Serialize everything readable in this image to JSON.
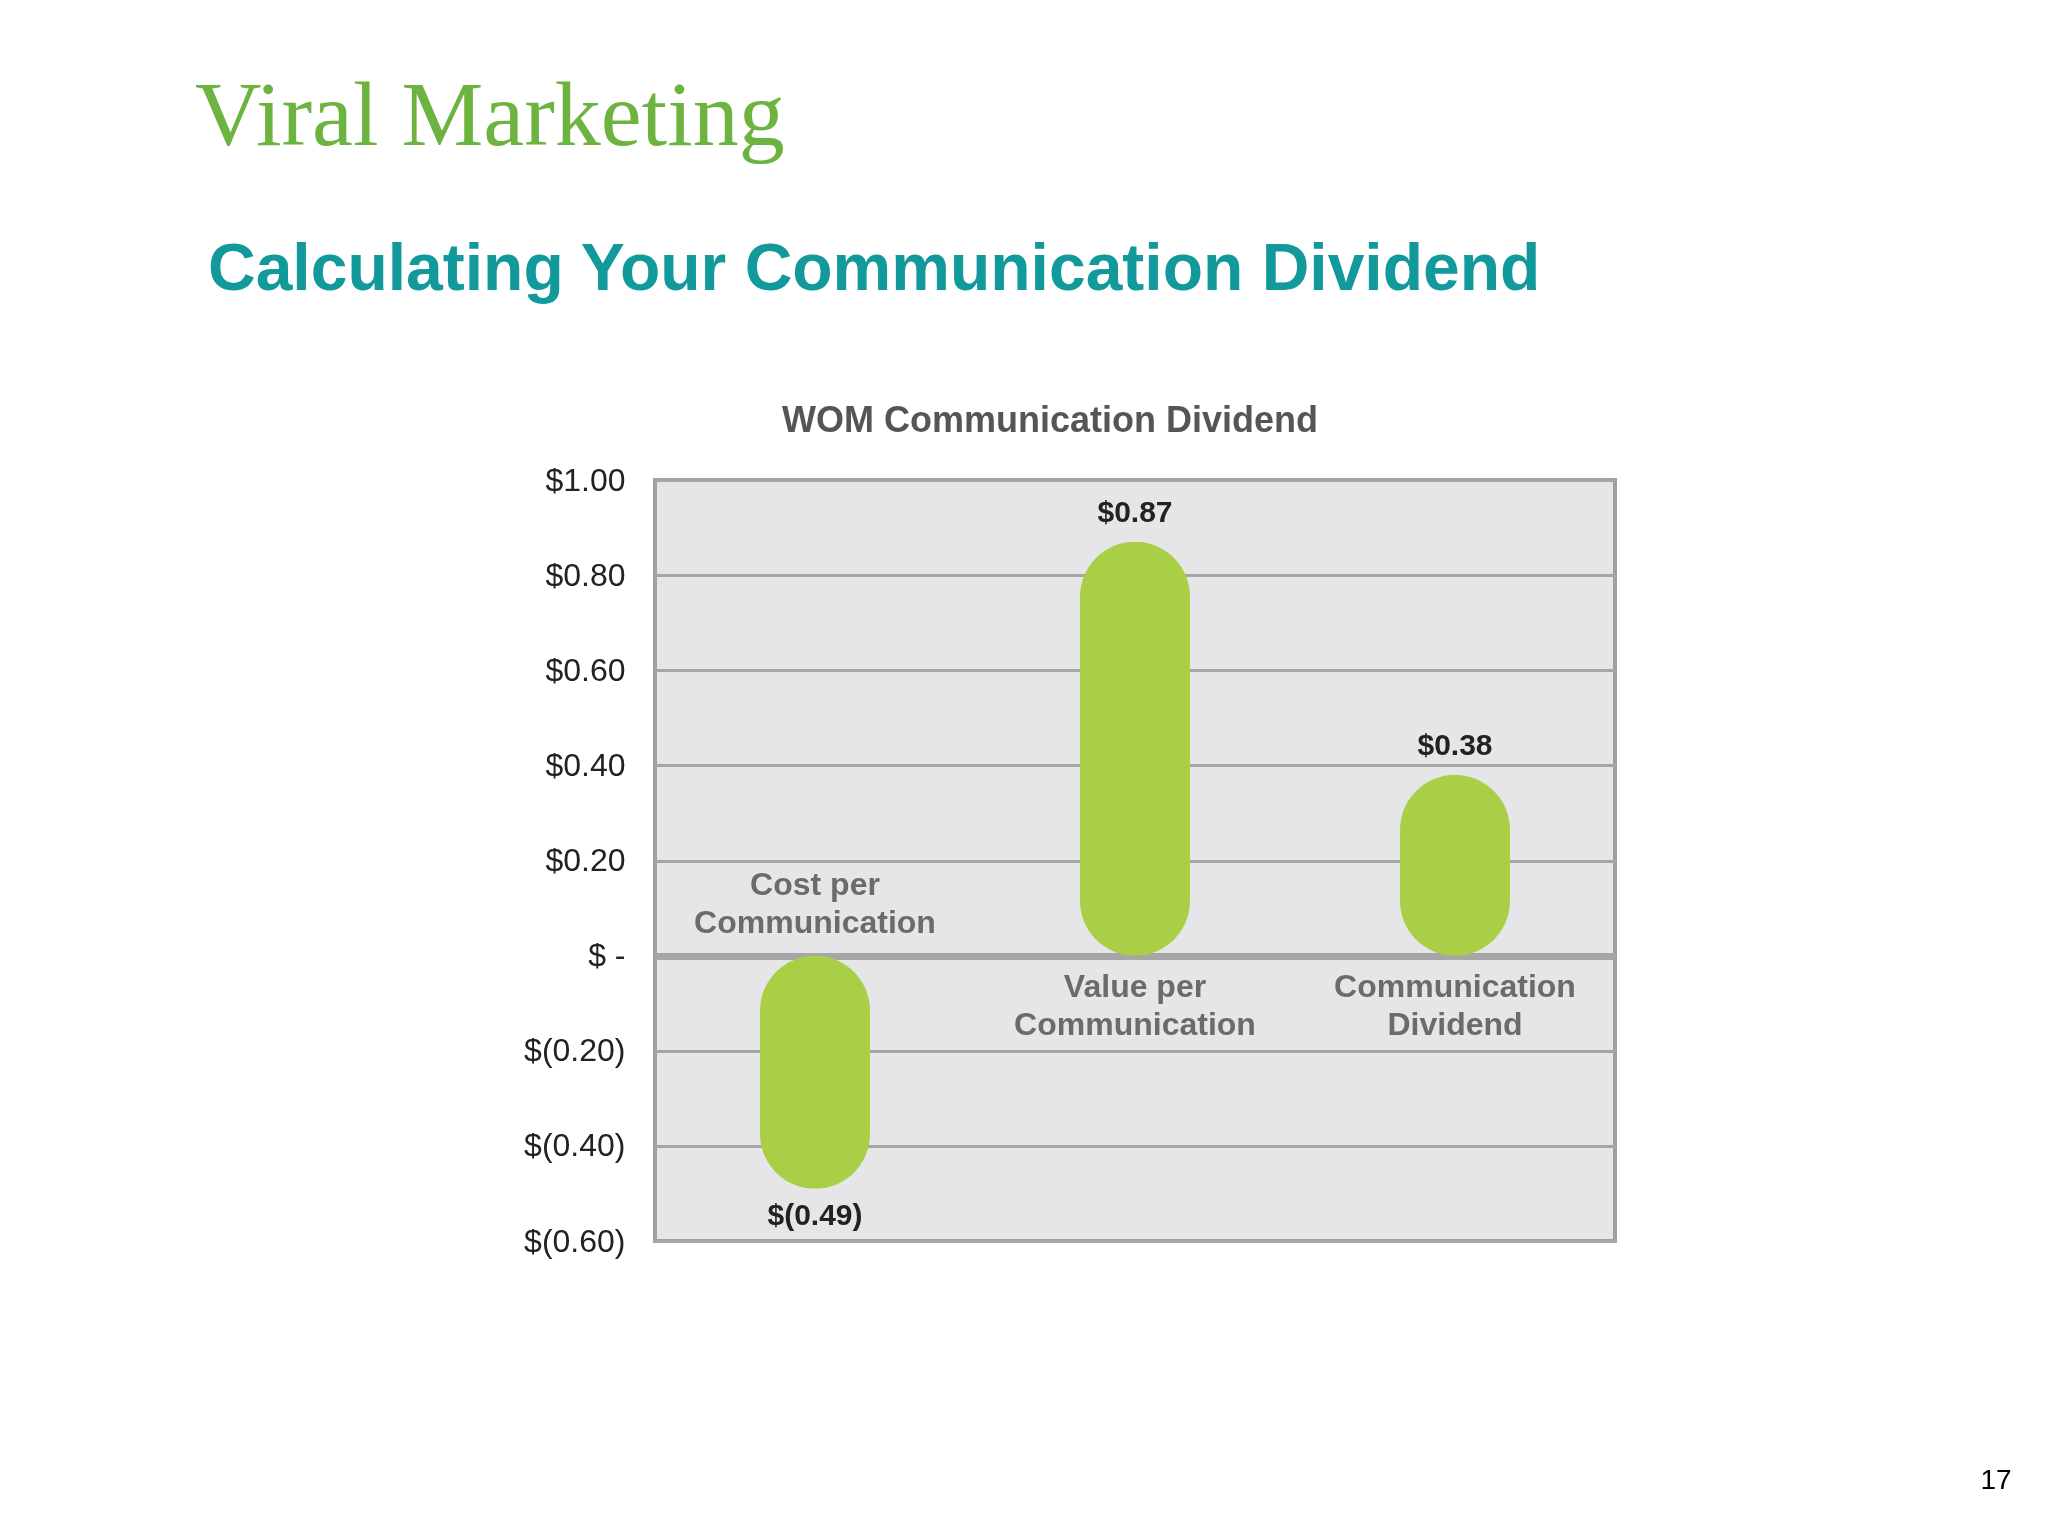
{
  "chart_data": {
    "type": "bar",
    "title": "Viral Marketing",
    "subtitle": "Calculating Your Communication Dividend",
    "annotations": [
      "WOM Communication Dividend",
      "17"
    ],
    "categories": [
      "Cost per Communication",
      "Value per Communication",
      "Communication Dividend"
    ],
    "values": [
      -0.49,
      0.87,
      0.38
    ],
    "value_labels": [
      "$(0.49)",
      "$0.87",
      "$0.38"
    ],
    "color": "#a8cf45",
    "ylim": [
      -0.6,
      1.0
    ],
    "yticks": [
      {
        "value": 1.0,
        "label": "$1.00"
      },
      {
        "value": 0.8,
        "label": "$0.80"
      },
      {
        "value": 0.6,
        "label": "$0.60"
      },
      {
        "value": 0.4,
        "label": "$0.40"
      },
      {
        "value": 0.2,
        "label": "$0.20"
      },
      {
        "value": 0,
        "label": "$ -"
      },
      {
        "value": -0.2,
        "label": "$(0.20)"
      },
      {
        "value": -0.4,
        "label": "$(0.40)"
      },
      {
        "value": -0.6,
        "label": "$(0.60)"
      }
    ],
    "grid": "y"
  }
}
